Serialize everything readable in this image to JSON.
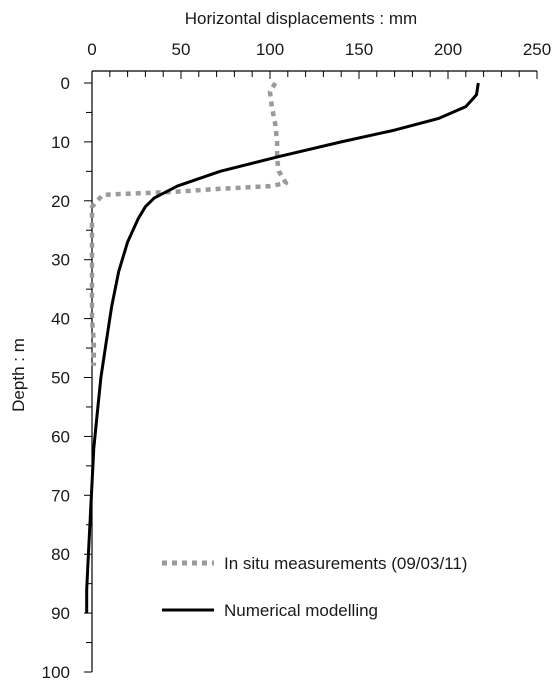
{
  "chart_data": {
    "type": "line",
    "xlabel": "Horizontal displacements : mm",
    "ylabel": "Depth : m",
    "xlim": [
      0,
      250
    ],
    "ylim": [
      0,
      100
    ],
    "y_inverted": true,
    "x_axis_position": "top",
    "x_ticks": [
      0,
      50,
      100,
      150,
      200,
      250
    ],
    "y_ticks": [
      0,
      10,
      20,
      30,
      40,
      50,
      60,
      70,
      80,
      90,
      100
    ],
    "grid": false,
    "legend_position": "bottom-right",
    "series": [
      {
        "name": "In situ measurements (09/03/11)",
        "color": "#9a9a9a",
        "style": "dotted",
        "x": [
          103,
          100,
          101,
          103,
          104,
          104,
          105,
          109,
          100,
          70,
          45,
          20,
          6,
          0,
          0,
          0,
          0,
          0,
          1,
          1,
          1
        ],
        "y": [
          0,
          1.5,
          4,
          7,
          10,
          13,
          15,
          17,
          17.5,
          18,
          18.5,
          18.8,
          19,
          21,
          25,
          30,
          35,
          40,
          44,
          47,
          48
        ]
      },
      {
        "name": "Numerical modelling",
        "color": "#000000",
        "style": "solid",
        "x": [
          217,
          216,
          210,
          195,
          170,
          140,
          105,
          72,
          48,
          35,
          30,
          26,
          20,
          15,
          11,
          8,
          5,
          3,
          1,
          0,
          -1,
          -2,
          -3,
          -3
        ],
        "y": [
          0,
          2,
          4,
          6,
          8,
          10,
          12.5,
          15,
          17.5,
          19.5,
          21,
          23,
          27,
          32,
          38,
          44,
          50,
          56,
          62,
          68,
          74,
          80,
          86,
          90
        ]
      }
    ]
  }
}
